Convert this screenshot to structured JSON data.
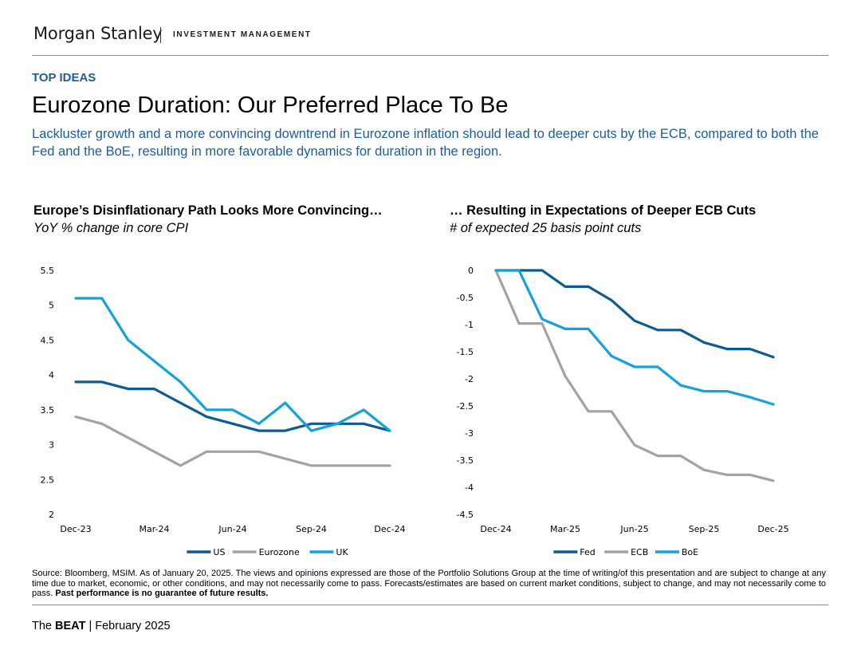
{
  "header": {
    "logo_text": "Morgan Stanley",
    "logo_subtext": "INVESTMENT MANAGEMENT"
  },
  "section_label": "TOP IDEAS",
  "title": "Eurozone Duration: Our Preferred Place To Be",
  "subtitle": "Lackluster growth and a more convincing downtrend in Eurozone inflation should lead to deeper cuts by the ECB, compared to both the Fed and the BoE, resulting in more favorable dynamics for duration in the region.",
  "colors": {
    "dark_blue": "#0b5b94",
    "gray": "#a3a3a3",
    "light_blue": "#14a1dc",
    "accent_text": "#1f5c99"
  },
  "chart_data": [
    {
      "type": "line",
      "title": "Europe’s Disinflationary Path Looks More Convincing…",
      "subtitle": "YoY % change in core CPI",
      "categories": [
        "Dec-23",
        "Jan-24",
        "Feb-24",
        "Mar-24",
        "Apr-24",
        "May-24",
        "Jun-24",
        "Jul-24",
        "Aug-24",
        "Sep-24",
        "Oct-24",
        "Nov-24",
        "Dec-24"
      ],
      "x_tick_labels": [
        "Dec-23",
        "Mar-24",
        "Jun-24",
        "Sep-24",
        "Dec-24"
      ],
      "y_ticks": [
        "5.5",
        "5",
        "4.5",
        "4",
        "3.5",
        "3",
        "2.5",
        "2"
      ],
      "ylim": [
        2,
        5.5
      ],
      "series": [
        {
          "name": "US",
          "color": "#0b5b94",
          "values": [
            3.9,
            3.9,
            3.8,
            3.8,
            3.6,
            3.4,
            3.3,
            3.2,
            3.2,
            3.3,
            3.3,
            3.3,
            3.2
          ]
        },
        {
          "name": "Eurozone",
          "color": "#a3a3a3",
          "values": [
            3.4,
            3.3,
            3.1,
            2.9,
            2.7,
            2.9,
            2.9,
            2.9,
            2.8,
            2.7,
            2.7,
            2.7,
            2.7
          ]
        },
        {
          "name": "UK",
          "color": "#14a1dc",
          "values": [
            5.1,
            5.1,
            4.5,
            4.2,
            3.9,
            3.5,
            3.5,
            3.3,
            3.6,
            3.2,
            3.3,
            3.5,
            3.2
          ]
        }
      ],
      "legend": [
        "US",
        "Eurozone",
        "UK"
      ]
    },
    {
      "type": "line",
      "title": "… Resulting in Expectations of Deeper ECB Cuts",
      "subtitle": "# of expected 25 basis point cuts",
      "categories": [
        "Dec-24",
        "Jan-25",
        "Feb-25",
        "Mar-25",
        "Apr-25",
        "May-25",
        "Jun-25",
        "Jul-25",
        "Aug-25",
        "Sep-25",
        "Oct-25",
        "Nov-25",
        "Dec-25"
      ],
      "x_tick_labels": [
        "Dec-24",
        "Mar-25",
        "Jun-25",
        "Sep-25",
        "Dec-25"
      ],
      "y_ticks": [
        "0",
        "-0.5",
        "-1",
        "-1.5",
        "-2",
        "-2.5",
        "-3",
        "-3.5",
        "-4",
        "-4.5"
      ],
      "ylim": [
        -4.5,
        0
      ],
      "series": [
        {
          "name": "Fed",
          "color": "#0b5b94",
          "values": [
            0,
            0,
            0,
            -0.3,
            -0.3,
            -0.55,
            -0.93,
            -1.1,
            -1.1,
            -1.33,
            -1.45,
            -1.45,
            -1.6
          ]
        },
        {
          "name": "ECB",
          "color": "#a3a3a3",
          "values": [
            0,
            -0.98,
            -0.98,
            -1.95,
            -2.6,
            -2.6,
            -3.22,
            -3.42,
            -3.42,
            -3.68,
            -3.77,
            -3.77,
            -3.88
          ]
        },
        {
          "name": "BoE",
          "color": "#14a1dc",
          "values": [
            0,
            0,
            -0.9,
            -1.08,
            -1.08,
            -1.58,
            -1.78,
            -1.78,
            -2.12,
            -2.23,
            -2.23,
            -2.34,
            -2.47
          ]
        }
      ],
      "legend": [
        "Fed",
        "ECB",
        "BoE"
      ]
    }
  ],
  "source": {
    "text": "Source: Bloomberg, MSIM. As of January 20, 2025. The views and opinions expressed are those of the Portfolio Solutions Group at the time of writing/of this presentation and are subject to change at any time due to market, economic, or other conditions, and may not necessarily come to pass. Forecasts/estimates are based on current market conditions, subject to change, and may not necessarily come to pass.",
    "bold_text": "Past performance is no guarantee of future results."
  },
  "footer": {
    "prefix": "The",
    "brand": "BEAT",
    "rest": "| February 2025"
  }
}
